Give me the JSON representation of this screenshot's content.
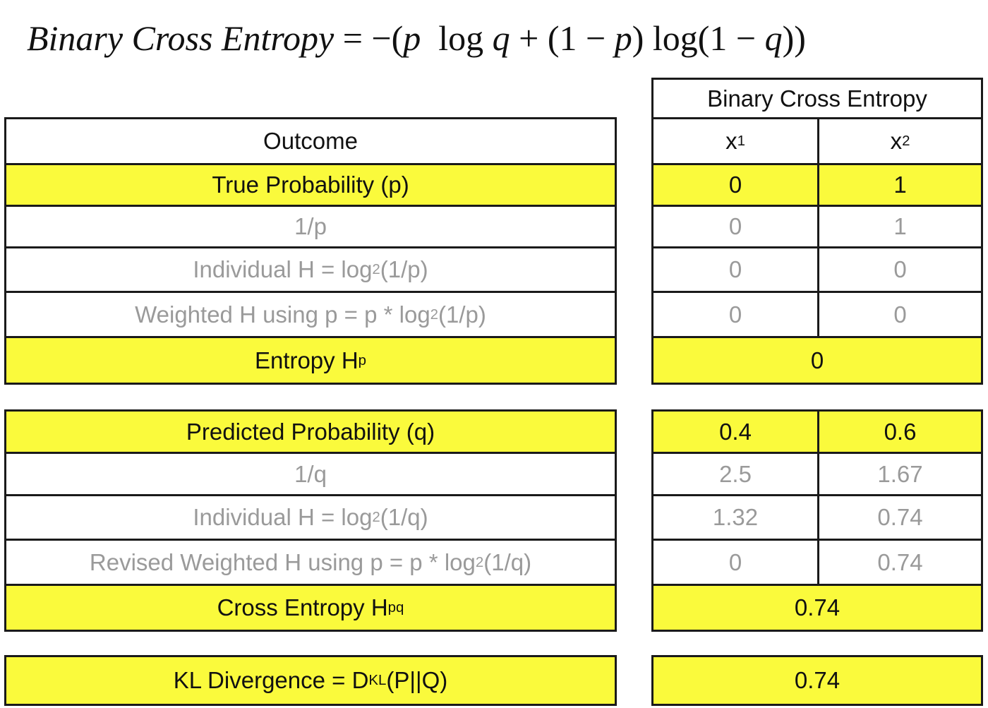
{
  "formula": {
    "lhs": "Binary Cross Entropy",
    "eq": " = −(",
    "p1": "p",
    "log1": "log",
    "q1": "q",
    "plus": " + (1 − ",
    "p2": "p",
    "close1": ") ",
    "log2": "log",
    "open2": "(1 − ",
    "q2": "q",
    "close2": "))"
  },
  "left_table": {
    "outcome": "Outcome",
    "true_prob": "True Probability (p)",
    "inv_p": "1/p",
    "indiv_h_p": {
      "pre": "Individual H = log",
      "sub": "2",
      "post": " (1/p)"
    },
    "weighted_h_p": {
      "pre": "Weighted H using p = p * log",
      "sub": "2",
      "post": " (1/p)"
    },
    "entropy": {
      "pre": "Entropy H",
      "sub": "p"
    },
    "pred_prob": "Predicted Probability (q)",
    "inv_q": "1/q",
    "indiv_h_q": {
      "pre": "Individual H = log",
      "sub": "2",
      "post": " (1/q)"
    },
    "revised_weighted": {
      "pre": "Revised Weighted H using p = p * log",
      "sub": "2",
      "post": " (1/q)"
    },
    "cross_entropy": {
      "pre": "Cross Entropy H",
      "sub": "pq"
    },
    "kl": {
      "pre": "KL Divergence = D",
      "sub": "KL",
      "post": "(P||Q)"
    }
  },
  "right_table": {
    "title": "Binary Cross Entropy",
    "x1": {
      "pre": "x",
      "sub": "1"
    },
    "x2": {
      "pre": "x",
      "sub": "2"
    },
    "p": [
      "0",
      "1"
    ],
    "inv_p": [
      "0",
      "1"
    ],
    "indiv_h_p": [
      "0",
      "0"
    ],
    "weighted_h_p": [
      "0",
      "0"
    ],
    "entropy": "0",
    "q": [
      "0.4",
      "0.6"
    ],
    "inv_q": [
      "2.5",
      "1.67"
    ],
    "indiv_h_q": [
      "1.32",
      "0.74"
    ],
    "revised_weighted": [
      "0",
      "0.74"
    ],
    "cross_entropy": "0.74",
    "kl": "0.74"
  },
  "colors": {
    "highlight": "#fafa3c",
    "muted_text": "#9a9a9a",
    "border": "#1a1a1a"
  }
}
